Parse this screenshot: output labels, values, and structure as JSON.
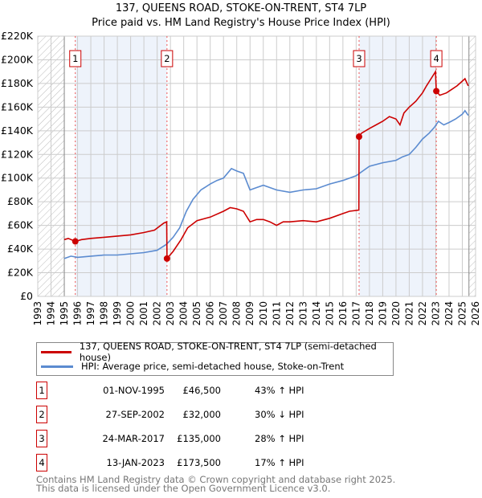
{
  "title": "137, QUEENS ROAD, STOKE-ON-TRENT, ST4 7LP",
  "subtitle": "Price paid vs. HM Land Registry's House Price Index (HPI)",
  "chart_data": {
    "type": "line",
    "xlim": [
      1993,
      2026
    ],
    "ylim": [
      0,
      220000
    ],
    "x_ticks": [
      "1993",
      "1994",
      "1995",
      "1996",
      "1997",
      "1998",
      "1999",
      "2000",
      "2001",
      "2002",
      "2003",
      "2004",
      "2005",
      "2006",
      "2007",
      "2008",
      "2009",
      "2010",
      "2011",
      "2012",
      "2013",
      "2014",
      "2015",
      "2016",
      "2017",
      "2018",
      "2019",
      "2020",
      "2021",
      "2022",
      "2023",
      "2024",
      "2025",
      "2026"
    ],
    "y_ticks": [
      {
        "v": 0,
        "label": "£0"
      },
      {
        "v": 20000,
        "label": "£20K"
      },
      {
        "v": 40000,
        "label": "£40K"
      },
      {
        "v": 60000,
        "label": "£60K"
      },
      {
        "v": 80000,
        "label": "£80K"
      },
      {
        "v": 100000,
        "label": "£100K"
      },
      {
        "v": 120000,
        "label": "£120K"
      },
      {
        "v": 140000,
        "label": "£140K"
      },
      {
        "v": 160000,
        "label": "£160K"
      },
      {
        "v": 180000,
        "label": "£180K"
      },
      {
        "v": 200000,
        "label": "£200K"
      },
      {
        "v": 220000,
        "label": "£220K"
      }
    ],
    "series": [
      {
        "name": "137, QUEENS ROAD, STOKE-ON-TRENT, ST4 7LP (semi-detached house)",
        "color": "#cc0000",
        "x": [
          1995.0,
          1995.3,
          1995.83,
          1996.3,
          1997,
          1998,
          1999,
          2000,
          2001,
          2001.8,
          2002.5,
          2002.72,
          2002.74,
          2003.2,
          2003.8,
          2004.3,
          2005,
          2006,
          2007,
          2007.5,
          2008,
          2008.5,
          2009,
          2009.5,
          2010,
          2010.5,
          2011,
          2011.5,
          2012,
          2013,
          2014,
          2015,
          2016,
          2016.5,
          2017.2,
          2017.22,
          2017.4,
          2018,
          2018.5,
          2019,
          2019.5,
          2020,
          2020.3,
          2020.6,
          2021,
          2021.5,
          2022,
          2022.3,
          2022.7,
          2022.98,
          2023.04,
          2023.3,
          2023.8,
          2024.2,
          2024.6,
          2025.0,
          2025.2,
          2025.45
        ],
        "y": [
          48000,
          49000,
          46500,
          48000,
          49000,
          50000,
          51000,
          52000,
          54000,
          56000,
          62000,
          63000,
          32000,
          38000,
          48000,
          58000,
          64000,
          67000,
          72000,
          75000,
          74000,
          72000,
          63000,
          65000,
          65000,
          63000,
          60000,
          63000,
          63000,
          64000,
          63000,
          66000,
          70000,
          72000,
          73000,
          135000,
          138000,
          142000,
          145000,
          148000,
          152000,
          150000,
          145000,
          155000,
          160000,
          165000,
          172000,
          178000,
          185000,
          190000,
          173500,
          170000,
          172000,
          175000,
          178000,
          182000,
          184000,
          178000
        ]
      },
      {
        "name": "HPI: Average price, semi-detached house, Stoke-on-Trent",
        "color": "#5b8bd0",
        "x": [
          1995.0,
          1995.5,
          1996,
          1997,
          1998,
          1999,
          2000,
          2001,
          2002,
          2002.7,
          2003.2,
          2003.7,
          2004.2,
          2004.7,
          2005.3,
          2006,
          2006.5,
          2007,
          2007.6,
          2008,
          2008.5,
          2009,
          2009.5,
          2010,
          2011,
          2012,
          2013,
          2014,
          2015,
          2016,
          2017,
          2017.5,
          2018,
          2019,
          2020,
          2020.5,
          2021,
          2021.5,
          2022,
          2022.5,
          2022.9,
          2023.2,
          2023.6,
          2024,
          2024.5,
          2025,
          2025.2,
          2025.45
        ],
        "y": [
          32000,
          34000,
          33000,
          34000,
          35000,
          35000,
          36000,
          37000,
          39000,
          44000,
          50000,
          58000,
          72000,
          82000,
          90000,
          95000,
          98000,
          100000,
          108000,
          106000,
          104000,
          90000,
          92000,
          94000,
          90000,
          88000,
          90000,
          91000,
          95000,
          98000,
          102000,
          106000,
          110000,
          113000,
          115000,
          118000,
          120000,
          126000,
          133000,
          138000,
          143000,
          148000,
          145000,
          147000,
          150000,
          154000,
          157000,
          153000
        ]
      }
    ],
    "sales": [
      {
        "n": "1",
        "x": 1995.83,
        "y": 46500
      },
      {
        "n": "2",
        "x": 2002.74,
        "y": 32000
      },
      {
        "n": "3",
        "x": 2017.22,
        "y": 135000
      },
      {
        "n": "4",
        "x": 2023.04,
        "y": 173500
      }
    ],
    "hatched": [
      [
        1993,
        1995.0
      ],
      [
        2025.5,
        2026
      ]
    ],
    "shaded": [
      [
        1995.83,
        2002.74
      ],
      [
        2017.22,
        2023.04
      ]
    ]
  },
  "legend": {
    "property": "137, QUEENS ROAD, STOKE-ON-TRENT, ST4 7LP (semi-detached house)",
    "hpi": "HPI: Average price, semi-detached house, Stoke-on-Trent"
  },
  "table": [
    {
      "n": "1",
      "date": "01-NOV-1995",
      "price": "£46,500",
      "hpi": "43% ↑ HPI"
    },
    {
      "n": "2",
      "date": "27-SEP-2002",
      "price": "£32,000",
      "hpi": "30% ↓ HPI"
    },
    {
      "n": "3",
      "date": "24-MAR-2017",
      "price": "£135,000",
      "hpi": "28% ↑ HPI"
    },
    {
      "n": "4",
      "date": "13-JAN-2023",
      "price": "£173,500",
      "hpi": "17% ↑ HPI"
    }
  ],
  "footer": {
    "line1": "Contains HM Land Registry data © Crown copyright and database right 2025.",
    "line2": "This data is licensed under the Open Government Licence v3.0."
  }
}
